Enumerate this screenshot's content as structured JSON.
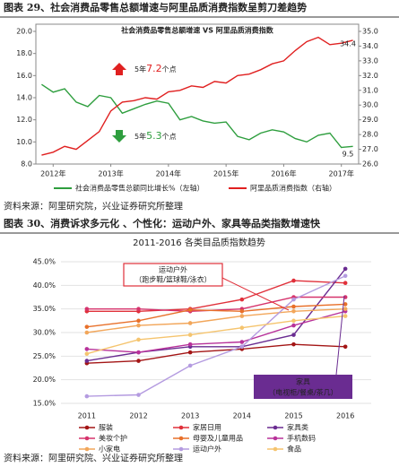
{
  "header": {
    "title": "图表 29、社会消费品零售总额增速与阿里品质消费指数呈剪刀差趋势"
  },
  "chart_data": [
    {
      "type": "line",
      "title": "社会消费品零售总额增速 VS 阿里品质消费指数",
      "x": [
        2011.8,
        2012.0,
        2012.2,
        2012.4,
        2012.6,
        2012.8,
        2013.0,
        2013.2,
        2013.4,
        2013.6,
        2013.8,
        2014.0,
        2014.2,
        2014.4,
        2014.6,
        2014.8,
        2015.0,
        2015.2,
        2015.4,
        2015.6,
        2015.8,
        2016.0,
        2016.2,
        2016.4,
        2016.6,
        2016.8,
        2017.0,
        2017.2
      ],
      "xlim": [
        2011.7,
        2017.3
      ],
      "xticks": [
        {
          "value": 2012,
          "label": "2012年"
        },
        {
          "value": 2013,
          "label": "2013年"
        },
        {
          "value": 2014,
          "label": "2014年"
        },
        {
          "value": 2015,
          "label": "2015年"
        },
        {
          "value": 2016,
          "label": "2016年"
        },
        {
          "value": 2017,
          "label": "2017年"
        }
      ],
      "ylim": [
        8,
        20
      ],
      "yticks": [
        {
          "value": 8,
          "label": "8.0"
        },
        {
          "value": 10,
          "label": "10.0"
        },
        {
          "value": 12,
          "label": "12.0"
        },
        {
          "value": 14,
          "label": "14.0"
        },
        {
          "value": 16,
          "label": "16.0"
        },
        {
          "value": 18,
          "label": "18.0"
        },
        {
          "value": 20,
          "label": "20.0"
        }
      ],
      "y2lim": [
        26,
        35
      ],
      "y2ticks": [
        {
          "value": 26,
          "label": "26.0"
        },
        {
          "value": 27,
          "label": "27.0"
        },
        {
          "value": 28,
          "label": "28.0"
        },
        {
          "value": 29,
          "label": "29.0"
        },
        {
          "value": 30,
          "label": "30.0"
        },
        {
          "value": 31,
          "label": "31.0"
        },
        {
          "value": 32,
          "label": "32.0"
        },
        {
          "value": 33,
          "label": "33.0"
        },
        {
          "value": 34,
          "label": "34.0"
        },
        {
          "value": 35,
          "label": "35.0"
        }
      ],
      "series": [
        {
          "name": "社会消费品零售总额同比增长%（左轴）",
          "color": "#2e9e3e",
          "values": [
            15.2,
            14.5,
            14.8,
            13.6,
            13.2,
            14.2,
            14.0,
            12.6,
            13.0,
            13.4,
            13.7,
            13.5,
            12.0,
            12.3,
            11.9,
            11.7,
            11.8,
            10.5,
            10.2,
            10.8,
            11.1,
            10.9,
            10.3,
            10.0,
            10.6,
            10.8,
            9.5,
            9.6
          ]
        },
        {
          "name": "阿里品质消费指数（右轴）",
          "color": "#e02020",
          "axis": "y2",
          "values": [
            26.6,
            26.8,
            27.2,
            27.0,
            27.6,
            28.2,
            29.6,
            30.2,
            30.3,
            30.5,
            30.4,
            30.9,
            31.0,
            31.3,
            31.2,
            31.6,
            31.5,
            32.0,
            32.1,
            32.4,
            32.8,
            33.0,
            33.7,
            34.3,
            34.6,
            34.1,
            34.2,
            34.4
          ]
        }
      ],
      "annotations": [
        {
          "prefix": "5年",
          "value": "7.2",
          "suffix": "个点",
          "color": "#e02020"
        },
        {
          "prefix": "5年",
          "value": "5.3",
          "suffix": "个点",
          "color": "#2e9e3e"
        },
        {
          "text": "34.4",
          "color": "#e02020"
        },
        {
          "text": "9.5",
          "color": "#2e9e3e"
        }
      ]
    },
    {
      "type": "line",
      "title": "2011-2016 各类目品质指数趋势",
      "categories": [
        "2011",
        "2012",
        "2013",
        "2014",
        "2015",
        "2016"
      ],
      "ylim": [
        15,
        45
      ],
      "yticks": [
        {
          "value": 15,
          "label": "15.0%"
        },
        {
          "value": 20,
          "label": "20.0%"
        },
        {
          "value": 25,
          "label": "25.0%"
        },
        {
          "value": 30,
          "label": "30.0%"
        },
        {
          "value": 35,
          "label": "35.0%"
        },
        {
          "value": 40,
          "label": "40.0%"
        },
        {
          "value": 45,
          "label": "45.0%"
        }
      ],
      "series": [
        {
          "name": "服装",
          "color": "#a31515",
          "values": [
            23.5,
            24.0,
            25.8,
            26.5,
            27.5,
            27.0
          ]
        },
        {
          "name": "家居日用",
          "color": "#e0303a",
          "values": [
            34.5,
            34.5,
            35.0,
            37.0,
            41.0,
            40.5
          ]
        },
        {
          "name": "家具类",
          "color": "#6a2c91",
          "values": [
            24.0,
            25.8,
            27.0,
            27.0,
            29.5,
            43.5
          ]
        },
        {
          "name": "美妆个护",
          "color": "#d6336c",
          "values": [
            35.0,
            35.0,
            34.5,
            35.0,
            37.5,
            37.5
          ]
        },
        {
          "name": "母婴及儿童用品",
          "color": "#e8702a",
          "values": [
            31.2,
            32.5,
            34.8,
            34.5,
            35.5,
            36.0
          ]
        },
        {
          "name": "手机数码",
          "color": "#b8329a",
          "values": [
            26.5,
            25.8,
            27.5,
            28.0,
            31.5,
            34.5
          ]
        },
        {
          "name": "小家电",
          "color": "#f2a65a",
          "values": [
            30.0,
            31.5,
            32.0,
            33.5,
            34.5,
            35.0
          ]
        },
        {
          "name": "运动户外",
          "color": "#b49be0",
          "values": [
            16.5,
            16.8,
            23.0,
            27.0,
            37.0,
            42.0
          ]
        },
        {
          "name": "食品",
          "color": "#f5c46e",
          "values": [
            25.5,
            28.5,
            29.5,
            31.0,
            32.5,
            33.5
          ]
        }
      ],
      "annotations": [
        {
          "title": "运动户外",
          "detail": "（跑步鞋/篮球鞋/泳衣）"
        },
        {
          "title": "家具",
          "detail": "（电视柜/餐桌/茶几）"
        }
      ]
    }
  ],
  "source_1": "资料来源：阿里研究院，兴业证券研究所整理",
  "section_2": {
    "title": "图表 30、消费诉求多元化 、个性化：运动户外、家具等品类指数增速快"
  },
  "source_2": "资料来源：阿里研究院、兴业证券研究所整理"
}
